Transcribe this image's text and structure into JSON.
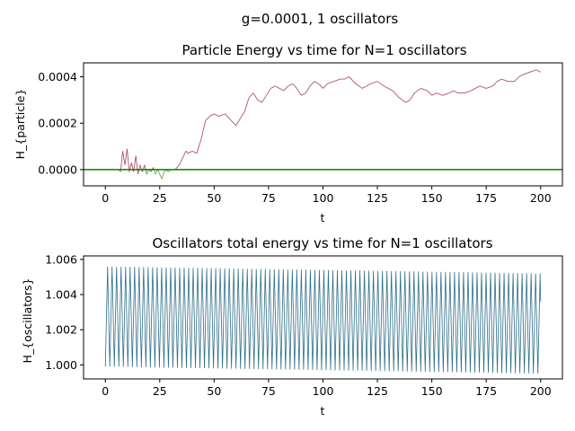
{
  "figure": {
    "suptitle": "g=0.0001, 1 oscillators"
  },
  "chart_data": [
    {
      "type": "line",
      "title": "Particle Energy vs time for N=1 oscillators",
      "xlabel": "t",
      "ylabel": "H_{particle}",
      "xlim": [
        -10,
        210
      ],
      "ylim": [
        -7e-05,
        0.00046
      ],
      "xticks": [
        0,
        25,
        50,
        75,
        100,
        125,
        150,
        175,
        200
      ],
      "xtick_labels": [
        "0",
        "25",
        "50",
        "75",
        "100",
        "125",
        "150",
        "175",
        "200"
      ],
      "yticks": [
        0.0,
        0.0002,
        0.0004
      ],
      "ytick_labels": [
        "0.0000",
        "0.0002",
        "0.0004"
      ],
      "grid": false,
      "hline": {
        "y": 0.0,
        "color": "#008000"
      },
      "series": [
        {
          "color": "#b0526a",
          "color_below_zero": "#6aa84f",
          "x": [
            6,
            7,
            8,
            9,
            10,
            11,
            12,
            13,
            14,
            15,
            16,
            17,
            18,
            19,
            20,
            21,
            22,
            23,
            24,
            25,
            26,
            27,
            28,
            29,
            30,
            31,
            32,
            33,
            34,
            35,
            36,
            37,
            38,
            40,
            42,
            44,
            46,
            48,
            50,
            52,
            55,
            58,
            60,
            62,
            64,
            66,
            68,
            70,
            72,
            74,
            76,
            78,
            80,
            82,
            84,
            86,
            88,
            90,
            92,
            94,
            96,
            98,
            100,
            102,
            105,
            108,
            110,
            112,
            115,
            118,
            120,
            122,
            125,
            128,
            130,
            132,
            135,
            138,
            140,
            142,
            145,
            148,
            150,
            152,
            155,
            158,
            160,
            162,
            165,
            168,
            170,
            172,
            175,
            178,
            180,
            182,
            185,
            188,
            190,
            192,
            195,
            198,
            200
          ],
          "y": [
            0.0,
            -1e-05,
            8e-05,
            2e-05,
            9e-05,
            -1e-05,
            3e-05,
            -1e-05,
            6e-05,
            -2e-05,
            2e-05,
            -1e-05,
            2e-05,
            -2e-05,
            0.0,
            -1e-05,
            1e-05,
            -2e-05,
            0.0,
            -2e-05,
            -4e-05,
            -1e-05,
            0.0,
            -1e-05,
            0.0,
            0.0,
            0.0,
            1e-05,
            2e-05,
            4e-05,
            6e-05,
            8e-05,
            7e-05,
            8e-05,
            7e-05,
            0.00013,
            0.00021,
            0.00023,
            0.00024,
            0.00023,
            0.00024,
            0.00021,
            0.00019,
            0.00022,
            0.00025,
            0.00031,
            0.00033,
            0.0003,
            0.00029,
            0.00032,
            0.00035,
            0.00036,
            0.00035,
            0.00034,
            0.00036,
            0.00037,
            0.00035,
            0.00032,
            0.00033,
            0.00036,
            0.00038,
            0.00037,
            0.00035,
            0.00037,
            0.00038,
            0.00039,
            0.00039,
            0.0004,
            0.00037,
            0.00035,
            0.00036,
            0.00037,
            0.00038,
            0.00036,
            0.00035,
            0.00034,
            0.00031,
            0.00029,
            0.0003,
            0.00033,
            0.00035,
            0.00034,
            0.00032,
            0.00033,
            0.00032,
            0.00033,
            0.00034,
            0.00033,
            0.00033,
            0.00034,
            0.00035,
            0.00036,
            0.00035,
            0.00036,
            0.00038,
            0.00039,
            0.00038,
            0.00038,
            0.0004,
            0.00041,
            0.00042,
            0.00043,
            0.00042
          ]
        }
      ]
    },
    {
      "type": "line",
      "title": "Oscillators total energy vs time for N=1 oscillators",
      "xlabel": "t",
      "ylabel": "H_{oscillators}",
      "xlim": [
        -10,
        210
      ],
      "ylim": [
        0.9992,
        1.0062
      ],
      "xticks": [
        0,
        25,
        50,
        75,
        100,
        125,
        150,
        175,
        200
      ],
      "xtick_labels": [
        "0",
        "25",
        "50",
        "75",
        "100",
        "125",
        "150",
        "175",
        "200"
      ],
      "yticks": [
        1.0,
        1.002,
        1.004,
        1.006
      ],
      "ytick_labels": [
        "1.000",
        "1.002",
        "1.004",
        "1.006"
      ],
      "grid": false,
      "series": [
        {
          "color": "#2f6f8a",
          "oscillation": {
            "t_start": 0,
            "t_end": 200,
            "period": 2.07,
            "max_start": 1.0056,
            "max_end": 1.0052,
            "min_start": 0.9999,
            "min_end": 0.9995,
            "final_value": 1.0036
          }
        }
      ]
    }
  ]
}
